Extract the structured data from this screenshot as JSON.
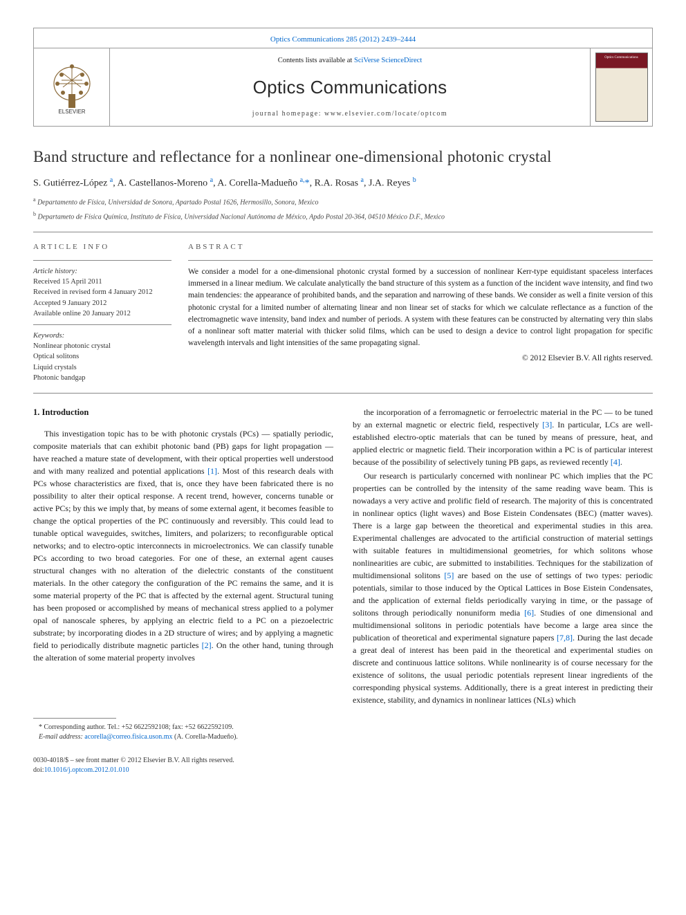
{
  "header": {
    "citation_link": "Optics Communications 285 (2012) 2439–2444",
    "contents_prefix": "Contents lists available at ",
    "contents_link": "SciVerse ScienceDirect",
    "journal_name": "Optics Communications",
    "homepage_prefix": "journal homepage: ",
    "homepage_url": "www.elsevier.com/locate/optcom",
    "publisher_name": "ELSEVIER",
    "cover_label": "Optics Communications"
  },
  "article": {
    "title": "Band structure and reflectance for a nonlinear one-dimensional photonic crystal",
    "authors_html": "S. Gutiérrez-López <sup>a</sup>, A. Castellanos-Moreno <sup>a</sup>, A. Corella-Madueño <sup>a,</sup><a href=\"#\">*</a>, R.A. Rosas <sup>a</sup>, J.A. Reyes <sup>b</sup>",
    "affiliations": [
      {
        "sup": "a",
        "text": "Departamento de Física, Universidad de Sonora, Apartado Postal 1626, Hermosillo, Sonora, Mexico"
      },
      {
        "sup": "b",
        "text": "Departameto de Física Química, Instituto de Física, Universidad Nacional Autónoma de México, Apdo Postal 20-364, 04510 México D.F., Mexico"
      }
    ]
  },
  "info": {
    "heading": "ARTICLE INFO",
    "history_label": "Article history:",
    "history": [
      "Received 15 April 2011",
      "Received in revised form 4 January 2012",
      "Accepted 9 January 2012",
      "Available online 20 January 2012"
    ],
    "keywords_label": "Keywords:",
    "keywords": [
      "Nonlinear photonic crystal",
      "Optical solitons",
      "Liquid crystals",
      "Photonic bandgap"
    ]
  },
  "abstract": {
    "heading": "ABSTRACT",
    "text": "We consider a model for a one-dimensional photonic crystal formed by a succession of nonlinear Kerr-type equidistant spaceless interfaces immersed in a linear medium. We calculate analytically the band structure of this system as a function of the incident wave intensity, and find two main tendencies: the appearance of prohibited bands, and the separation and narrowing of these bands. We consider as well a finite version of this photonic crystal for a limited number of alternating linear and non linear set of stacks for which we calculate reflectance as a function of the electromagnetic wave intensity, band index and number of periods. A system with these features can be constructed by alternating very thin slabs of a nonlinear soft matter material with thicker solid films, which can be used to design a device to control light propagation for specific wavelength intervals and light intensities of the same propagating signal.",
    "copyright": "© 2012 Elsevier B.V. All rights reserved."
  },
  "body": {
    "section_heading": "1. Introduction",
    "col1_para": "This investigation topic has to be with photonic crystals (PCs) — spatially periodic, composite materials that can exhibit photonic band (PB) gaps for light propagation — have reached a mature state of development, with their optical properties well understood and with many realized and potential applications [1]. Most of this research deals with PCs whose characteristics are fixed, that is, once they have been fabricated there is no possibility to alter their optical response. A recent trend, however, concerns tunable or active PCs; by this we imply that, by means of some external agent, it becomes feasible to change the optical properties of the PC continuously and reversibly. This could lead to tunable optical waveguides, switches, limiters, and polarizers; to reconfigurable optical networks; and to electro-optic interconnects in microelectronics. We can classify tunable PCs according to two broad categories. For one of these, an external agent causes structural changes with no alteration of the dielectric constants of the constituent materials. In the other category the configuration of the PC remains the same, and it is some material property of the PC that is affected by the external agent. Structural tuning has been proposed or accomplished by means of mechanical stress applied to a polymer opal of nanoscale spheres, by applying an electric field to a PC on a piezoelectric substrate; by incorporating diodes in a 2D structure of wires; and by applying a magnetic field to periodically distribute magnetic particles [2]. On the other hand, tuning through the alteration of some material property involves",
    "col2_para1": "the incorporation of a ferromagnetic or ferroelectric material in the PC — to be tuned by an external magnetic or electric field, respectively [3]. In particular, LCs are well-established electro-optic materials that can be tuned by means of pressure, heat, and applied electric or magnetic field. Their incorporation within a PC is of particular interest because of the possibility of selectively tuning PB gaps, as reviewed recently [4].",
    "col2_para2": "Our research is particularly concerned with nonlinear PC which implies that the PC properties can be controlled by the intensity of the same reading wave beam. This is nowadays a very active and prolific field of research. The majority of this is concentrated in nonlinear optics (light waves) and Bose Eistein Condensates (BEC) (matter waves). There is a large gap between the theoretical and experimental studies in this area. Experimental challenges are advocated to the artificial construction of material settings with suitable features in multidimensional geometries, for which solitons whose nonlinearities are cubic, are submitted to instabilities. Techniques for the stabilization of multidimensional solitons [5] are based on the use of settings of two types: periodic potentials, similar to those induced by the Optical Lattices in Bose Eistein Condensates, and the application of external fields periodically varying in time, or the passage of solitons through periodically nonuniform media [6]. Studies of one dimensional and multidimensional solitons in periodic potentials have become a large area since the publication of theoretical and experimental signature papers [7,8]. During the last decade a great deal of interest has been paid in the theoretical and experimental studies on discrete and continuous lattice solitons. While nonlinearity is of course necessary for the existence of solitons, the usual periodic potentials represent linear ingredients of the corresponding physical systems. Additionally, there is a great interest in predicting their existence, stability, and dynamics in nonlinear lattices (NLs) which",
    "refs": {
      "r1": "[1]",
      "r2": "[2]",
      "r3": "[3]",
      "r4": "[4]",
      "r5": "[5]",
      "r6": "[6]",
      "r78": "[7,8]"
    }
  },
  "footnote": {
    "corr_label": "* Corresponding author. Tel.: +52 6622592108; fax: +52 6622592109.",
    "email_label": "E-mail address:",
    "email": "acorella@correo.fisica.uson.mx",
    "email_person": "(A. Corella-Madueño)."
  },
  "footer": {
    "issn_line": "0030-4018/$ – see front matter © 2012 Elsevier B.V. All rights reserved.",
    "doi_prefix": "doi:",
    "doi": "10.1016/j.optcom.2012.01.010"
  },
  "colors": {
    "link": "#0066cc",
    "text": "#1a1a1a",
    "rule": "#888888",
    "cover_top": "#7a1824",
    "cover_body": "#efe8d8"
  }
}
